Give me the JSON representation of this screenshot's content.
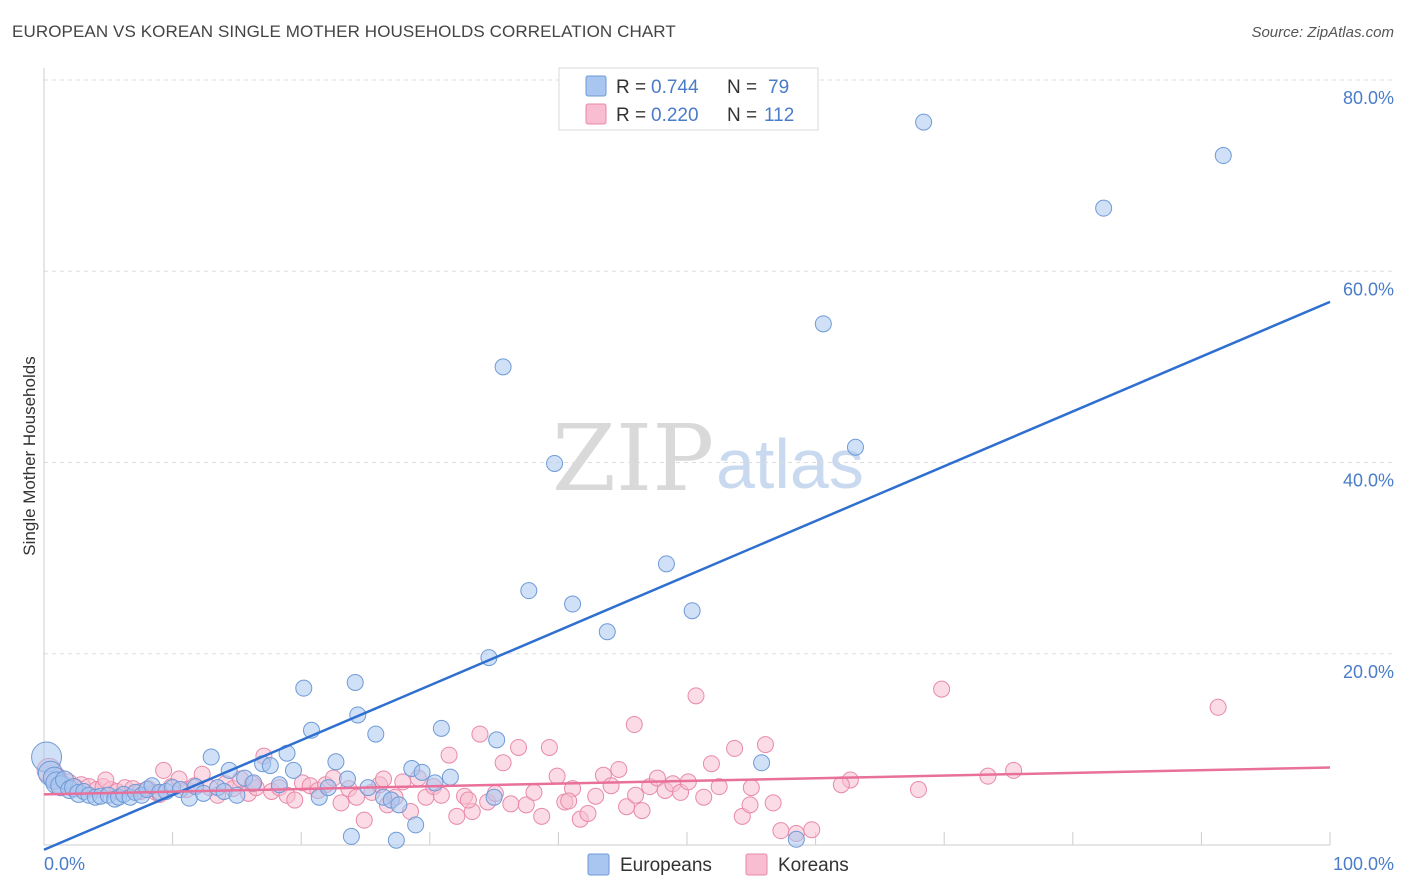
{
  "title": "EUROPEAN VS KOREAN SINGLE MOTHER HOUSEHOLDS CORRELATION CHART",
  "source": "Source: ZipAtlas.com",
  "watermark": {
    "part1": "ZIP",
    "part2": "atlas"
  },
  "colors": {
    "europeans_fill": "#a8c6f0",
    "europeans_stroke": "#6f9ad6",
    "europeans_line": "#2f6fd0",
    "koreans_fill": "#f8bdd0",
    "koreans_stroke": "#e88aa9",
    "koreans_line": "#e8709a",
    "tick_label": "#4a7cc9",
    "grid": "#dddddd"
  },
  "legend": {
    "rows": [
      {
        "r_label": "R =",
        "r_value": "0.744",
        "n_label": "N =",
        "n_value": "79"
      },
      {
        "r_label": "R =",
        "r_value": "0.220",
        "n_label": "N =",
        "n_value": "112"
      }
    ]
  },
  "bottom_legend": [
    "Europeans",
    "Koreans"
  ],
  "chart_data": {
    "type": "scatter",
    "title": "EUROPEAN VS KOREAN SINGLE MOTHER HOUSEHOLDS CORRELATION CHART",
    "xlabel": "",
    "ylabel": "Single Mother Households",
    "xlim": [
      0,
      100
    ],
    "ylim": [
      0,
      80
    ],
    "x_tick_labels": [
      "0.0%",
      "100.0%"
    ],
    "y_ticks": [
      20,
      40,
      60,
      80
    ],
    "y_tick_labels": [
      "20.0%",
      "40.0%",
      "60.0%",
      "80.0%"
    ],
    "grid": true,
    "legend_position": "top-center",
    "series": [
      {
        "name": "Europeans",
        "R": 0.744,
        "N": 79,
        "trend": {
          "x": [
            0,
            100
          ],
          "y": [
            -0.5,
            56.8
          ]
        },
        "points": [
          [
            0.2,
            9.2,
            24
          ],
          [
            0.5,
            7.5,
            18
          ],
          [
            0.8,
            7.0,
            16
          ],
          [
            1.0,
            6.5,
            16
          ],
          [
            1.3,
            6.2,
            14
          ],
          [
            1.6,
            6.8,
            12
          ],
          [
            2.0,
            5.8,
            12
          ],
          [
            2.3,
            6.0,
            12
          ],
          [
            2.7,
            5.4,
            12
          ],
          [
            3.1,
            5.6,
            10
          ],
          [
            3.5,
            5.2,
            10
          ],
          [
            4.0,
            5.0,
            10
          ],
          [
            4.4,
            5.1,
            10
          ],
          [
            5.0,
            5.2,
            10
          ],
          [
            5.5,
            4.8,
            10
          ],
          [
            5.8,
            5.0,
            10
          ],
          [
            6.2,
            5.3,
            10
          ],
          [
            6.7,
            5.0,
            10
          ],
          [
            7.1,
            5.5,
            10
          ],
          [
            7.6,
            5.2,
            10
          ],
          [
            8.0,
            5.8,
            10
          ],
          [
            8.4,
            6.2,
            10
          ],
          [
            9.0,
            5.5,
            10
          ],
          [
            9.5,
            5.6,
            10
          ],
          [
            10.0,
            6.0,
            10
          ],
          [
            10.6,
            5.8,
            10
          ],
          [
            11.3,
            4.9,
            10
          ],
          [
            11.8,
            6.1,
            10
          ],
          [
            12.4,
            5.4,
            10
          ],
          [
            13.0,
            9.2,
            10
          ],
          [
            13.5,
            6.0,
            10
          ],
          [
            14.0,
            5.6,
            10
          ],
          [
            14.4,
            7.8,
            10
          ],
          [
            15.0,
            5.2,
            10
          ],
          [
            15.6,
            7.0,
            10
          ],
          [
            16.3,
            6.5,
            10
          ],
          [
            17.0,
            8.5,
            10
          ],
          [
            17.6,
            8.3,
            10
          ],
          [
            18.3,
            6.3,
            10
          ],
          [
            18.9,
            9.6,
            10
          ],
          [
            19.4,
            7.8,
            10
          ],
          [
            20.2,
            16.4,
            10
          ],
          [
            20.8,
            12.0,
            10
          ],
          [
            21.4,
            5.0,
            10
          ],
          [
            22.1,
            6.0,
            10
          ],
          [
            22.7,
            8.7,
            10
          ],
          [
            23.6,
            6.9,
            10
          ],
          [
            24.2,
            17.0,
            10
          ],
          [
            24.4,
            13.6,
            10
          ],
          [
            23.9,
            0.9,
            10
          ],
          [
            25.2,
            6.0,
            10
          ],
          [
            25.8,
            11.6,
            10
          ],
          [
            26.4,
            5.0,
            10
          ],
          [
            27.0,
            4.7,
            10
          ],
          [
            27.6,
            4.2,
            10
          ],
          [
            28.6,
            8.0,
            10
          ],
          [
            28.9,
            2.1,
            10
          ],
          [
            29.4,
            7.6,
            10
          ],
          [
            30.4,
            6.5,
            10
          ],
          [
            30.9,
            12.2,
            10
          ],
          [
            31.6,
            7.1,
            10
          ],
          [
            34.6,
            19.6,
            10
          ],
          [
            35.2,
            11.0,
            10
          ],
          [
            35.7,
            50.0,
            10
          ],
          [
            37.7,
            26.6,
            10
          ],
          [
            39.7,
            39.9,
            10
          ],
          [
            41.1,
            25.2,
            10
          ],
          [
            43.8,
            22.3,
            10
          ],
          [
            48.4,
            29.4,
            10
          ],
          [
            50.4,
            24.5,
            10
          ],
          [
            55.8,
            8.6,
            10
          ],
          [
            60.6,
            54.5,
            10
          ],
          [
            63.1,
            41.6,
            10
          ],
          [
            68.4,
            75.6,
            10
          ],
          [
            82.4,
            66.6,
            10
          ],
          [
            91.7,
            72.1,
            10
          ],
          [
            58.5,
            0.6,
            10
          ],
          [
            27.4,
            0.5,
            10
          ],
          [
            35.0,
            5.0,
            10
          ]
        ]
      },
      {
        "name": "Koreans",
        "R": 0.22,
        "N": 112,
        "trend": {
          "x": [
            0,
            100
          ],
          "y": [
            5.3,
            8.1
          ]
        },
        "points": [
          [
            0.4,
            7.8,
            18
          ],
          [
            0.9,
            7.0,
            16
          ],
          [
            1.4,
            6.3,
            14
          ],
          [
            1.9,
            6.5,
            12
          ],
          [
            2.4,
            6.0,
            12
          ],
          [
            2.9,
            6.2,
            12
          ],
          [
            3.5,
            6.0,
            12
          ],
          [
            4.1,
            5.8,
            10
          ],
          [
            4.6,
            6.1,
            10
          ],
          [
            5.2,
            5.8,
            10
          ],
          [
            5.7,
            5.6,
            10
          ],
          [
            6.3,
            6.0,
            10
          ],
          [
            6.9,
            5.9,
            10
          ],
          [
            7.5,
            5.6,
            10
          ],
          [
            8.1,
            5.9,
            10
          ],
          [
            8.7,
            5.5,
            10
          ],
          [
            9.3,
            7.8,
            10
          ],
          [
            9.9,
            6.1,
            10
          ],
          [
            10.5,
            6.9,
            10
          ],
          [
            11.1,
            5.8,
            10
          ],
          [
            11.7,
            6.2,
            10
          ],
          [
            12.3,
            7.4,
            10
          ],
          [
            12.9,
            6.0,
            10
          ],
          [
            13.5,
            5.2,
            10
          ],
          [
            14.1,
            6.4,
            10
          ],
          [
            14.7,
            5.9,
            10
          ],
          [
            15.3,
            6.9,
            10
          ],
          [
            15.9,
            5.4,
            10
          ],
          [
            16.5,
            6.0,
            10
          ],
          [
            17.1,
            9.3,
            10
          ],
          [
            17.7,
            5.6,
            10
          ],
          [
            18.3,
            6.0,
            10
          ],
          [
            18.9,
            5.2,
            10
          ],
          [
            19.5,
            4.7,
            10
          ],
          [
            20.1,
            6.5,
            10
          ],
          [
            20.7,
            6.2,
            10
          ],
          [
            21.3,
            5.7,
            10
          ],
          [
            21.9,
            6.3,
            10
          ],
          [
            22.5,
            7.0,
            10
          ],
          [
            23.1,
            4.4,
            10
          ],
          [
            23.7,
            5.9,
            10
          ],
          [
            24.3,
            5.0,
            10
          ],
          [
            24.9,
            2.6,
            10
          ],
          [
            25.5,
            5.5,
            10
          ],
          [
            26.1,
            6.3,
            10
          ],
          [
            26.7,
            4.2,
            10
          ],
          [
            27.3,
            5.0,
            10
          ],
          [
            27.9,
            6.6,
            10
          ],
          [
            28.5,
            3.5,
            10
          ],
          [
            29.1,
            7.0,
            10
          ],
          [
            29.7,
            5.0,
            10
          ],
          [
            30.3,
            6.1,
            10
          ],
          [
            30.9,
            5.2,
            10
          ],
          [
            31.5,
            9.4,
            10
          ],
          [
            32.1,
            3.0,
            10
          ],
          [
            32.7,
            5.1,
            10
          ],
          [
            33.3,
            3.5,
            10
          ],
          [
            33.9,
            11.6,
            10
          ],
          [
            34.5,
            4.5,
            10
          ],
          [
            35.1,
            5.4,
            10
          ],
          [
            35.7,
            8.6,
            10
          ],
          [
            36.3,
            4.3,
            10
          ],
          [
            36.9,
            10.2,
            10
          ],
          [
            37.5,
            4.2,
            10
          ],
          [
            38.1,
            5.5,
            10
          ],
          [
            38.7,
            3.0,
            10
          ],
          [
            39.3,
            10.2,
            10
          ],
          [
            39.9,
            7.2,
            10
          ],
          [
            40.5,
            4.5,
            10
          ],
          [
            41.1,
            5.9,
            10
          ],
          [
            41.7,
            2.7,
            10
          ],
          [
            42.3,
            3.3,
            10
          ],
          [
            42.9,
            5.1,
            10
          ],
          [
            43.5,
            7.3,
            10
          ],
          [
            44.1,
            6.2,
            10
          ],
          [
            44.7,
            7.9,
            10
          ],
          [
            45.3,
            4.0,
            10
          ],
          [
            45.9,
            12.6,
            10
          ],
          [
            46.5,
            3.6,
            10
          ],
          [
            47.1,
            6.1,
            10
          ],
          [
            47.7,
            7.0,
            10
          ],
          [
            48.3,
            5.7,
            10
          ],
          [
            48.9,
            6.4,
            10
          ],
          [
            49.5,
            5.5,
            10
          ],
          [
            50.1,
            6.6,
            10
          ],
          [
            50.7,
            15.6,
            10
          ],
          [
            51.3,
            5.0,
            10
          ],
          [
            51.9,
            8.5,
            10
          ],
          [
            52.5,
            6.1,
            10
          ],
          [
            53.7,
            10.1,
            10
          ],
          [
            54.3,
            3.0,
            10
          ],
          [
            54.9,
            4.2,
            10
          ],
          [
            56.1,
            10.5,
            10
          ],
          [
            56.7,
            4.4,
            10
          ],
          [
            57.3,
            1.5,
            10
          ],
          [
            58.5,
            1.2,
            10
          ],
          [
            59.7,
            1.6,
            10
          ],
          [
            62.7,
            6.8,
            10
          ],
          [
            69.8,
            16.3,
            10
          ],
          [
            73.4,
            7.2,
            10
          ],
          [
            75.4,
            7.8,
            10
          ],
          [
            91.3,
            14.4,
            10
          ],
          [
            4.8,
            6.8,
            10
          ],
          [
            9.0,
            5.3,
            10
          ],
          [
            16.2,
            6.4,
            10
          ],
          [
            26.4,
            6.9,
            10
          ],
          [
            33.0,
            4.7,
            10
          ],
          [
            40.8,
            4.6,
            10
          ],
          [
            46.0,
            5.2,
            10
          ],
          [
            55.0,
            6.0,
            10
          ],
          [
            62.0,
            6.3,
            10
          ],
          [
            68.0,
            5.8,
            10
          ]
        ]
      }
    ]
  }
}
